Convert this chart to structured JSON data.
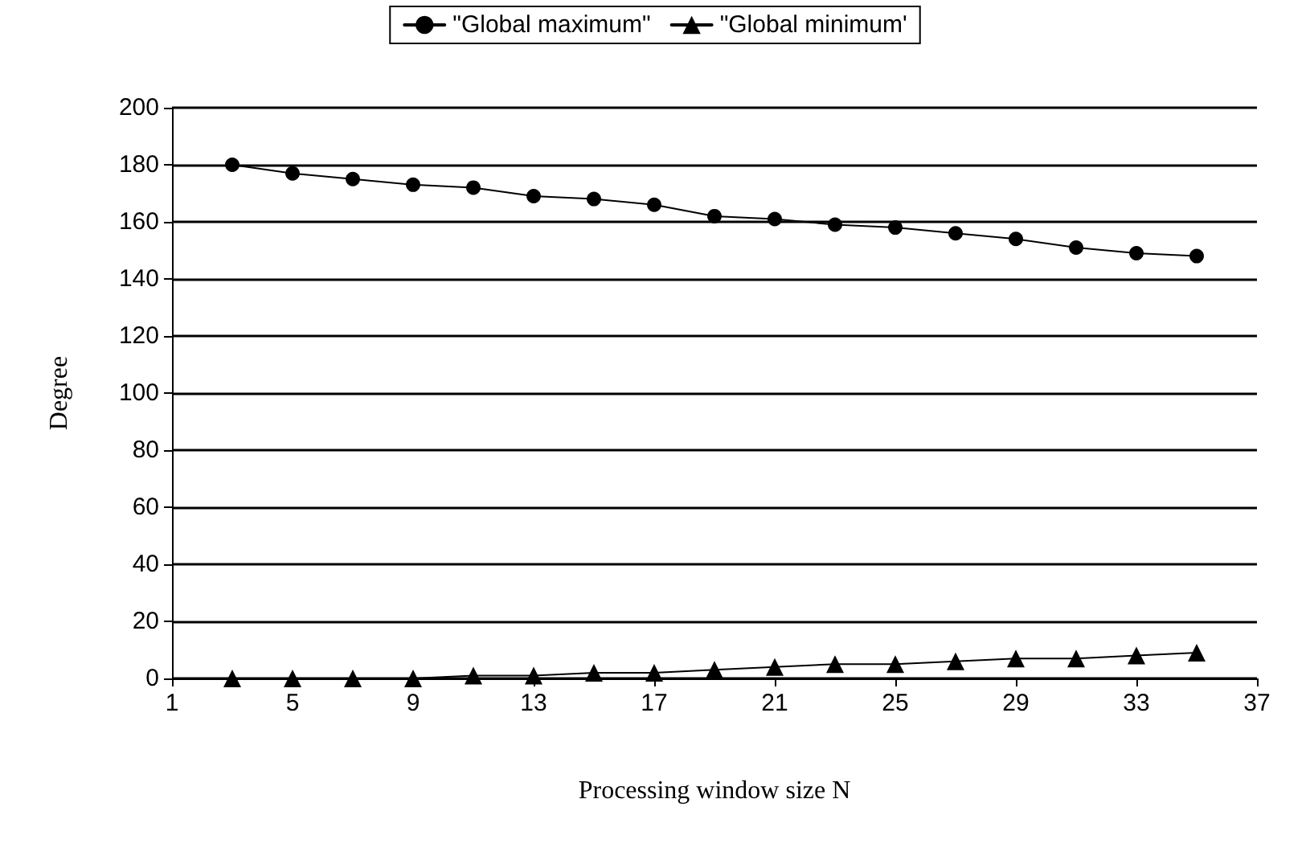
{
  "chart_data": {
    "type": "line",
    "xlabel": "Processing window size N",
    "ylabel": "Degree",
    "x": [
      3,
      5,
      7,
      9,
      11,
      13,
      15,
      17,
      19,
      21,
      23,
      25,
      27,
      29,
      31,
      33,
      35
    ],
    "series": [
      {
        "name": "\"Global maximum\"",
        "color": "#000000",
        "marker": "circle",
        "values": [
          180,
          177,
          175,
          173,
          172,
          169,
          168,
          166,
          162,
          161,
          159,
          158,
          156,
          154,
          151,
          149,
          148
        ]
      },
      {
        "name": "\"Global minimum'",
        "color": "#000000",
        "marker": "triangle",
        "values": [
          0,
          0,
          0,
          0,
          1,
          1,
          2,
          2,
          3,
          4,
          5,
          5,
          6,
          7,
          7,
          8,
          9
        ]
      }
    ],
    "xlim": [
      1,
      37
    ],
    "xticks": [
      1,
      5,
      9,
      13,
      17,
      21,
      25,
      29,
      33,
      37
    ],
    "ylim": [
      0,
      200
    ],
    "yticks": [
      0,
      20,
      40,
      60,
      80,
      100,
      120,
      140,
      160,
      180,
      200
    ],
    "grid": "y",
    "legend": "top",
    "line_style": "solid"
  }
}
